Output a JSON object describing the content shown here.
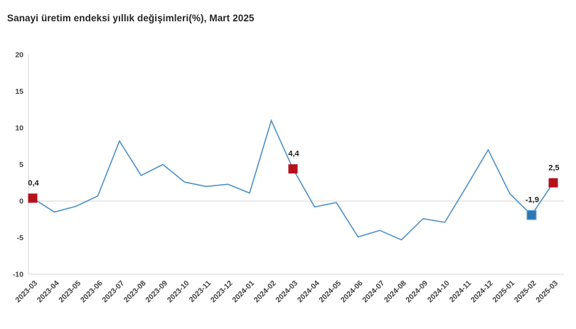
{
  "title": "Sanayi üretim endeksi yıllık değişimleri(%), Mart 2025",
  "colors": {
    "line": "#4e90c7",
    "marker_red": "#b5121b",
    "marker_blue": "#2e77b5",
    "marker_blue_border": "#6ea6d8",
    "grid": "#d6d6d6",
    "axis_text": "#404040",
    "annotation_text": "#1a1a1a",
    "title_text": "#262626",
    "background": "#ffffff"
  },
  "chart_data": {
    "type": "line",
    "title": "Sanayi üretim endeksi yıllık değişimleri(%), Mart 2025",
    "xlabel": "",
    "ylabel": "",
    "x": [
      "2023-03",
      "2023-04",
      "2023-05",
      "2023-06",
      "2023-07",
      "2023-08",
      "2023-09",
      "2023-10",
      "2023-11",
      "2023-12",
      "2024-01",
      "2024-02",
      "2024-03",
      "2024-04",
      "2024-05",
      "2024-06",
      "2024-07",
      "2024-08",
      "2024-09",
      "2024-10",
      "2024-11",
      "2024-12",
      "2025-01",
      "2025-02",
      "2025-03"
    ],
    "values": [
      0.4,
      -1.5,
      -0.7,
      0.7,
      8.2,
      3.5,
      5.0,
      2.6,
      2.0,
      2.3,
      1.1,
      11.0,
      4.4,
      -0.8,
      -0.2,
      -4.9,
      -4.0,
      -5.3,
      -2.4,
      -2.9,
      2.0,
      7.0,
      1.0,
      -1.9,
      2.5
    ],
    "ylim": [
      -10,
      20
    ],
    "yticks": [
      20,
      15,
      10,
      5,
      0,
      -5,
      -10
    ],
    "grid": "zero line only",
    "legend": "none",
    "x_label_rotation_deg": -45,
    "annotations": [
      {
        "x": "2023-03",
        "label": "0,4",
        "marker": "red"
      },
      {
        "x": "2024-03",
        "label": "4,4",
        "marker": "red"
      },
      {
        "x": "2025-02",
        "label": "-1,9",
        "marker": "blue"
      },
      {
        "x": "2025-03",
        "label": "2,5",
        "marker": "red"
      }
    ]
  }
}
